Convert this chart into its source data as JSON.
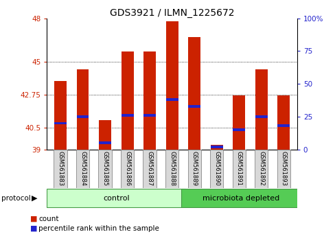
{
  "title": "GDS3921 / ILMN_1225672",
  "samples": [
    "GSM561883",
    "GSM561884",
    "GSM561885",
    "GSM561886",
    "GSM561887",
    "GSM561888",
    "GSM561889",
    "GSM561890",
    "GSM561891",
    "GSM561892",
    "GSM561893"
  ],
  "count_values": [
    43.7,
    44.5,
    41.0,
    45.7,
    45.7,
    47.8,
    46.7,
    39.3,
    42.7,
    44.5,
    42.7
  ],
  "percentile_values": [
    20,
    25,
    5,
    26,
    26,
    38,
    33,
    2,
    15,
    25,
    18
  ],
  "ymin": 39,
  "ymax": 48,
  "yticks": [
    39,
    40.5,
    42.75,
    45,
    48
  ],
  "ytick_labels": [
    "39",
    "40.5",
    "42.75",
    "45",
    "48"
  ],
  "yticks_right": [
    0,
    25,
    50,
    75,
    100
  ],
  "ytick_labels_right": [
    "0",
    "25",
    "50",
    "75",
    "100%"
  ],
  "grid_lines": [
    40.5,
    42.75,
    45
  ],
  "bar_color": "#cc2200",
  "blue_color": "#2222cc",
  "control_color": "#ccffcc",
  "microbiota_color": "#55cc55",
  "control_label": "control",
  "microbiota_label": "microbiota depleted",
  "protocol_label": "protocol",
  "legend_count": "count",
  "legend_percentile": "percentile rank within the sample",
  "n_control": 6,
  "bar_width": 0.55,
  "title_fontsize": 10
}
